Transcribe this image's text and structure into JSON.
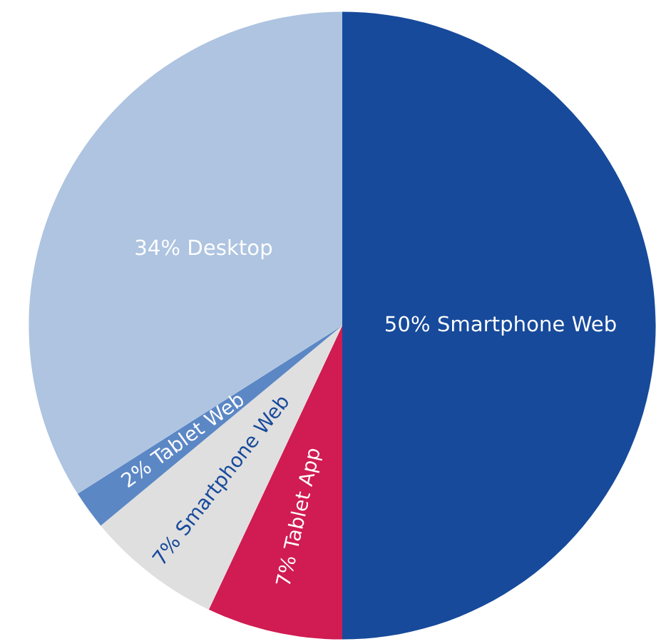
{
  "chart_data": {
    "type": "pie",
    "categories": [
      "Smartphone Web",
      "Tablet App",
      "Smartphone Web",
      "Tablet Web",
      "Desktop"
    ],
    "values": [
      50,
      7,
      7,
      2,
      34
    ],
    "value_labels": [
      "50%",
      "7%",
      "7%",
      "2%",
      "34%"
    ],
    "colors": [
      "#174a9b",
      "#d01c52",
      "#e0dfdf",
      "#5b87c5",
      "#aec4e0"
    ],
    "legend": false
  }
}
